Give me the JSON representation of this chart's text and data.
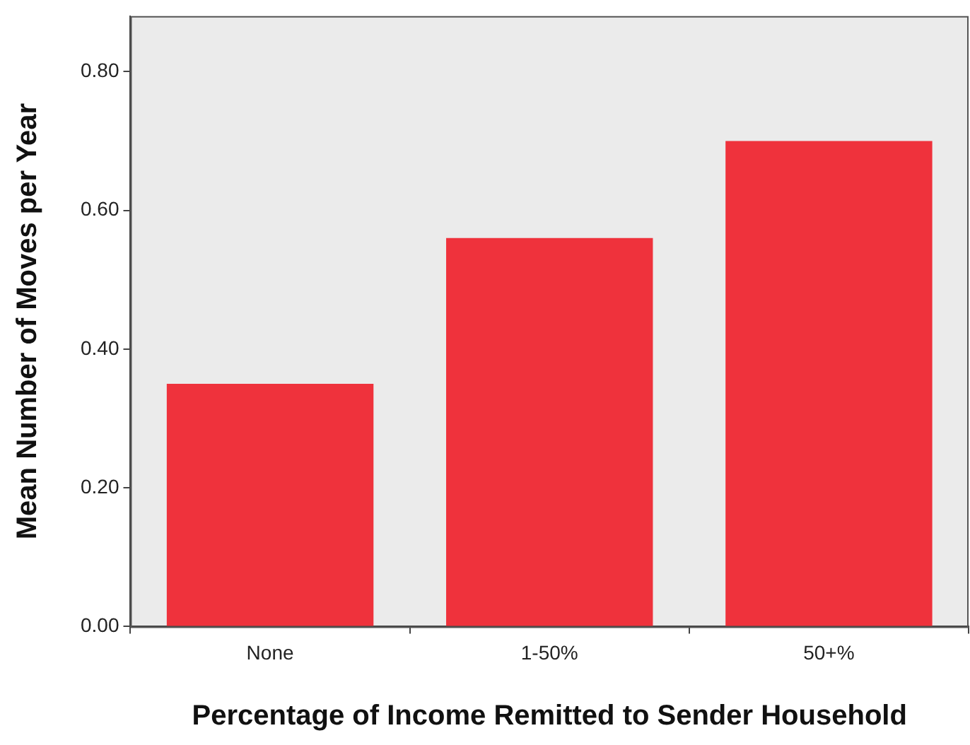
{
  "chart_data": {
    "type": "bar",
    "xlabel": "Percentage of Income Remitted to Sender Household",
    "ylabel": "Mean Number of Moves per Year",
    "categories": [
      "None",
      "1-50%",
      "50+%"
    ],
    "values": [
      0.35,
      0.56,
      0.7
    ],
    "color": "#ef323c",
    "ylim": [
      0,
      0.88
    ],
    "yticks": [
      {
        "value": 0,
        "label": "0.00"
      },
      {
        "value": 0.2,
        "label": "0.20"
      },
      {
        "value": 0.4,
        "label": "0.40"
      },
      {
        "value": 0.6,
        "label": "0.60"
      },
      {
        "value": 0.8,
        "label": "0.80"
      }
    ],
    "grid": false,
    "legend": false
  }
}
